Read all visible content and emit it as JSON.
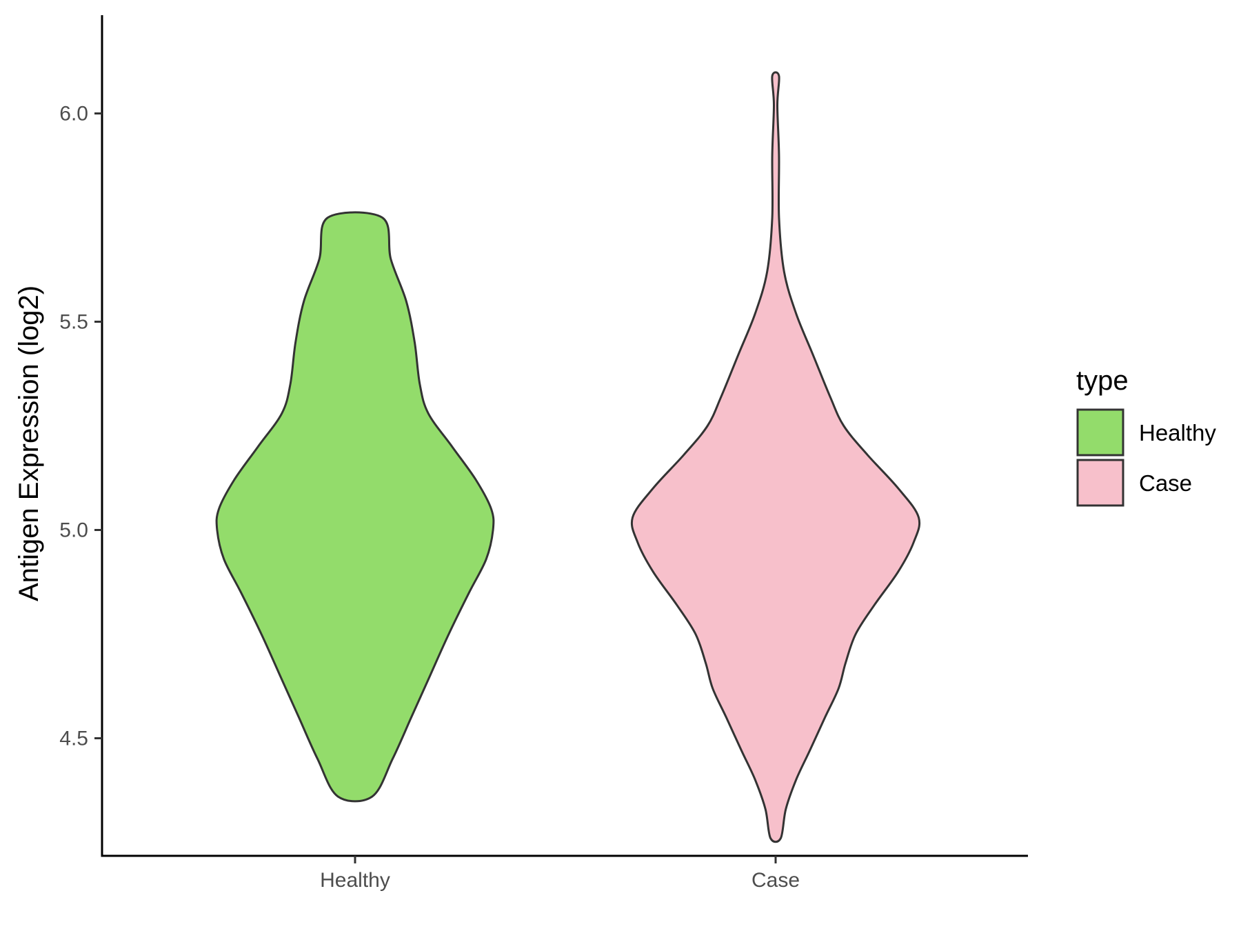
{
  "chart_data": {
    "type": "violin",
    "title": "",
    "xlabel": "",
    "ylabel": "Antigen Expression (log2)",
    "ylim": [
      4.18,
      6.19
    ],
    "yticks": [
      "4.5",
      "5.0",
      "5.5",
      "6.0"
    ],
    "categories": [
      "Healthy",
      "Case"
    ],
    "grid": false,
    "legend": {
      "title": "type",
      "position": "right",
      "entries": [
        {
          "label": "Healthy",
          "color": "#93dc6b"
        },
        {
          "label": "Case",
          "color": "#f7c0cb"
        }
      ]
    },
    "series": [
      {
        "category": "Healthy",
        "color": "#93dc6b",
        "min": 4.36,
        "max": 5.75,
        "density_profile": [
          [
            4.36,
            0.1
          ],
          [
            4.45,
            0.22
          ],
          [
            4.55,
            0.33
          ],
          [
            4.65,
            0.44
          ],
          [
            4.75,
            0.55
          ],
          [
            4.85,
            0.67
          ],
          [
            4.93,
            0.77
          ],
          [
            5.0,
            0.81
          ],
          [
            5.05,
            0.8
          ],
          [
            5.12,
            0.71
          ],
          [
            5.2,
            0.57
          ],
          [
            5.28,
            0.43
          ],
          [
            5.35,
            0.38
          ],
          [
            5.45,
            0.35
          ],
          [
            5.55,
            0.3
          ],
          [
            5.65,
            0.21
          ],
          [
            5.75,
            0.16
          ]
        ]
      },
      {
        "category": "Case",
        "color": "#f7c0cb",
        "min": 4.26,
        "max": 6.09,
        "density_profile": [
          [
            4.26,
            0.03
          ],
          [
            4.33,
            0.06
          ],
          [
            4.4,
            0.12
          ],
          [
            4.47,
            0.2
          ],
          [
            4.55,
            0.29
          ],
          [
            4.62,
            0.37
          ],
          [
            4.68,
            0.41
          ],
          [
            4.75,
            0.47
          ],
          [
            4.82,
            0.58
          ],
          [
            4.9,
            0.72
          ],
          [
            4.97,
            0.81
          ],
          [
            5.03,
            0.84
          ],
          [
            5.1,
            0.72
          ],
          [
            5.18,
            0.54
          ],
          [
            5.25,
            0.4
          ],
          [
            5.32,
            0.32
          ],
          [
            5.42,
            0.22
          ],
          [
            5.52,
            0.12
          ],
          [
            5.62,
            0.05
          ],
          [
            5.75,
            0.02
          ],
          [
            5.9,
            0.02
          ],
          [
            6.02,
            0.01
          ],
          [
            6.09,
            0.02
          ]
        ]
      }
    ]
  }
}
